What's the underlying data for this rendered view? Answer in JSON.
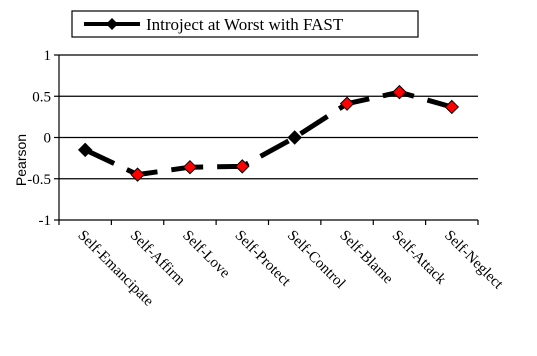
{
  "chart_data": {
    "type": "line",
    "title": "",
    "xlabel": "",
    "ylabel": "Pearson",
    "ylim": [
      -1,
      1
    ],
    "yticks": [
      1,
      0.5,
      0,
      -0.5,
      -1
    ],
    "ytick_labels": [
      "1",
      "0.5",
      "0",
      "-0.5",
      "-1"
    ],
    "grid": "horizontal",
    "legend_position": "top",
    "categories": [
      "Self-Emancipate",
      "Self-Affirm",
      "Self-Love",
      "Self-Protect",
      "Self-Control",
      "Self-Blame",
      "Self-Attack",
      "Self-Neglect"
    ],
    "series": [
      {
        "name": "Introject at Worst with FAST",
        "values": [
          -0.15,
          -0.45,
          -0.36,
          -0.35,
          0.0,
          0.41,
          0.55,
          0.37
        ],
        "line_color": "#000000",
        "line_style": "dashed",
        "marker_colors": [
          "#000000",
          "#ff0000",
          "#ff0000",
          "#ff0000",
          "#000000",
          "#ff0000",
          "#ff0000",
          "#ff0000"
        ]
      }
    ]
  }
}
